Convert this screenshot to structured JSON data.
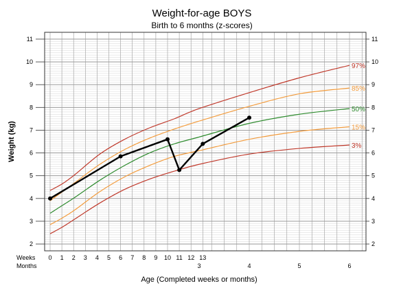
{
  "chart_data": {
    "type": "line",
    "title": "Weight-for-age  BOYS",
    "subtitle": "Birth to 6 months (z-scores)",
    "ylabel": "Weight (kg)",
    "xlabel": "Age (Completed weeks or months)",
    "ylim": [
      1.7,
      11.3
    ],
    "y_ticks": [
      2,
      3,
      4,
      5,
      6,
      7,
      8,
      9,
      10,
      11
    ],
    "grid": true,
    "x_row_labels": {
      "weeks": "Weeks",
      "months": "Months"
    },
    "week_ticks": [
      "0",
      "1",
      "2",
      "3",
      "4",
      "5",
      "6",
      "7",
      "8",
      "9",
      "10",
      "11",
      "12",
      "13"
    ],
    "month_ticks": [
      {
        "month": 3,
        "label": "3"
      },
      {
        "month": 4,
        "label": "4"
      },
      {
        "month": 5,
        "label": "5"
      },
      {
        "month": 6,
        "label": "6"
      }
    ],
    "percentiles": [
      {
        "name": "97%",
        "color": "#c0392b",
        "points": [
          [
            0,
            4.35
          ],
          [
            0.25,
            4.65
          ],
          [
            0.5,
            5.05
          ],
          [
            1,
            5.95
          ],
          [
            1.5,
            6.6
          ],
          [
            2,
            7.1
          ],
          [
            2.5,
            7.5
          ],
          [
            3,
            7.95
          ],
          [
            4,
            8.65
          ],
          [
            5,
            9.3
          ],
          [
            6,
            9.85
          ]
        ]
      },
      {
        "name": "85%",
        "color": "#f39c3d",
        "points": [
          [
            0,
            3.9
          ],
          [
            0.25,
            4.3
          ],
          [
            0.5,
            4.7
          ],
          [
            1,
            5.5
          ],
          [
            1.5,
            6.15
          ],
          [
            2,
            6.65
          ],
          [
            2.5,
            7.05
          ],
          [
            3,
            7.4
          ],
          [
            4,
            8.05
          ],
          [
            5,
            8.6
          ],
          [
            6,
            8.85
          ]
        ]
      },
      {
        "name": "50%",
        "color": "#2e8b2e",
        "points": [
          [
            0,
            3.35
          ],
          [
            0.25,
            3.7
          ],
          [
            0.5,
            4.05
          ],
          [
            1,
            4.8
          ],
          [
            1.5,
            5.45
          ],
          [
            2,
            6.0
          ],
          [
            2.5,
            6.4
          ],
          [
            3,
            6.7
          ],
          [
            4,
            7.3
          ],
          [
            5,
            7.7
          ],
          [
            6,
            7.95
          ]
        ]
      },
      {
        "name": "15%",
        "color": "#f39c3d",
        "points": [
          [
            0,
            2.85
          ],
          [
            0.25,
            3.15
          ],
          [
            0.5,
            3.5
          ],
          [
            1,
            4.3
          ],
          [
            1.5,
            4.95
          ],
          [
            2,
            5.45
          ],
          [
            2.5,
            5.85
          ],
          [
            3,
            6.1
          ],
          [
            4,
            6.6
          ],
          [
            5,
            6.95
          ],
          [
            6,
            7.15
          ]
        ]
      },
      {
        "name": "3%",
        "color": "#c0392b",
        "points": [
          [
            0,
            2.45
          ],
          [
            0.25,
            2.75
          ],
          [
            0.5,
            3.1
          ],
          [
            1,
            3.8
          ],
          [
            1.5,
            4.4
          ],
          [
            2,
            4.85
          ],
          [
            2.5,
            5.2
          ],
          [
            3,
            5.5
          ],
          [
            4,
            5.95
          ],
          [
            5,
            6.2
          ],
          [
            6,
            6.35
          ]
        ]
      }
    ],
    "series": [
      {
        "name": "",
        "unit_x": "weeks_then_months",
        "points": [
          {
            "x_weeks": 0,
            "y": 4.0
          },
          {
            "x_weeks": 6,
            "y": 5.85
          },
          {
            "x_weeks": 10,
            "y": 6.6
          },
          {
            "x_weeks": 11,
            "y": 5.25
          },
          {
            "x_weeks": 13,
            "y": 6.4
          },
          {
            "x_months": 4,
            "y": 7.55
          }
        ]
      }
    ]
  }
}
